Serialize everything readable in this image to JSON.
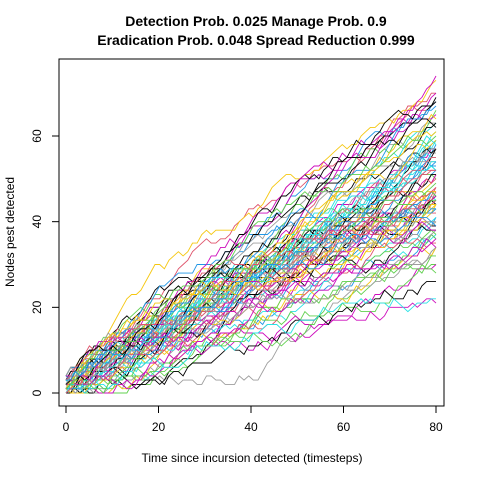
{
  "chart_data": {
    "type": "line",
    "title_line1": "Detection Prob. 0.025 Manage Prob. 0.9",
    "title_line2": "Eradication Prob. 0.048 Spread Reduction 0.999",
    "xlabel": "Time since incursion detected (timesteps)",
    "ylabel": "Nodes pest detected",
    "xlim": [
      0,
      82
    ],
    "ylim": [
      0,
      75
    ],
    "xticks": [
      0,
      20,
      40,
      60,
      80
    ],
    "yticks": [
      0,
      20,
      40,
      60
    ],
    "x_range": [
      1,
      80
    ],
    "series_count": 100,
    "start_value_range": [
      0,
      4
    ],
    "end_value_range": [
      23,
      75
    ],
    "colors": [
      "#000000",
      "#DF536B",
      "#61D04F",
      "#2297E6",
      "#28E2E5",
      "#CD0BBC",
      "#F5C710",
      "#9E9E9E"
    ],
    "legend": "none",
    "grid": false
  }
}
